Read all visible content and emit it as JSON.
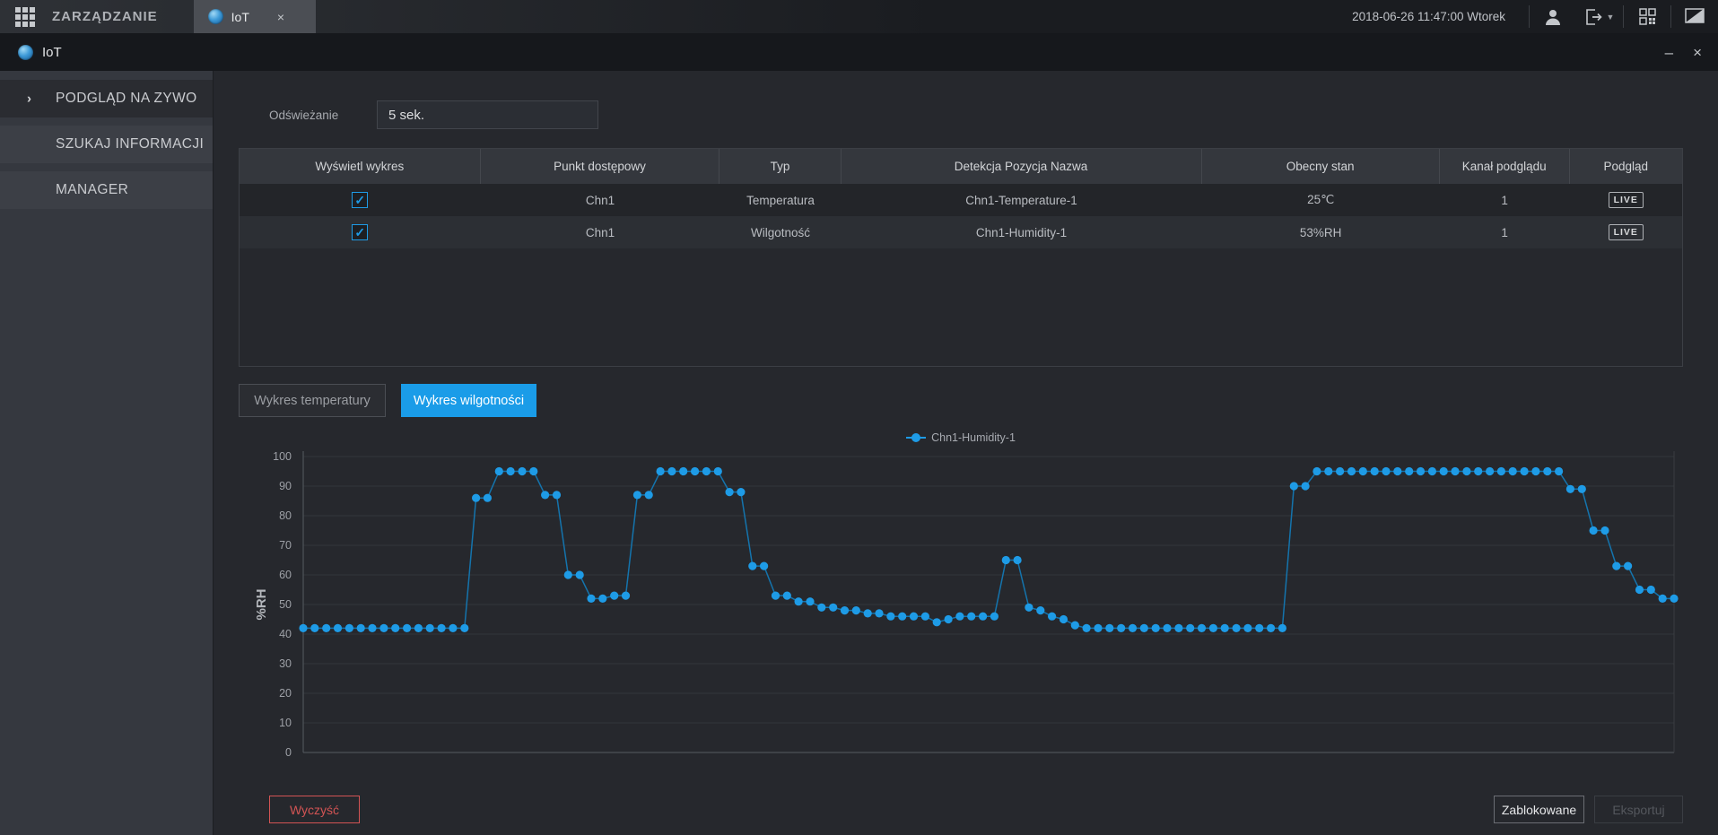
{
  "topbar": {
    "app_label": "ZARZĄDZANIE",
    "tab": {
      "label": "IoT",
      "close": "×"
    },
    "datetime": "2018-06-26 11:47:00 Wtorek"
  },
  "titlebar": {
    "title": "IoT",
    "minimize": "–",
    "close": "×"
  },
  "sidebar": {
    "items": [
      {
        "label": "PODGLĄD NA ZYWO",
        "active": true
      },
      {
        "label": "SZUKAJ INFORMACJI",
        "active": false
      },
      {
        "label": "MANAGER",
        "active": false
      }
    ]
  },
  "refresh": {
    "label": "Odświeżanie",
    "value": "5 sek."
  },
  "table": {
    "columns": [
      "Wyświetl wykres",
      "Punkt dostępowy",
      "Typ",
      "Detekcja Pozycja Nazwa",
      "Obecny stan",
      "Kanał podglądu",
      "Podgląd"
    ],
    "rows": [
      {
        "checked": true,
        "access_point": "Chn1",
        "type": "Temperatura",
        "detect_name": "Chn1-Temperature-1",
        "current_state": "25℃",
        "channel": "1",
        "preview": "LIVE"
      },
      {
        "checked": true,
        "access_point": "Chn1",
        "type": "Wilgotność",
        "detect_name": "Chn1-Humidity-1",
        "current_state": "53%RH",
        "channel": "1",
        "preview": "LIVE"
      }
    ]
  },
  "chart_tabs": {
    "temperature": "Wykres temperatury",
    "humidity": "Wykres wilgotności"
  },
  "chart_data": {
    "type": "line",
    "legend": [
      "Chn1-Humidity-1"
    ],
    "legend_position": "top-center",
    "ylabel": "%RH",
    "ylim": [
      0,
      100
    ],
    "y_ticks": [
      0,
      10,
      20,
      30,
      40,
      50,
      60,
      70,
      80,
      90,
      100
    ],
    "grid": true,
    "x_tick_labels_visible": false,
    "line_color": "#1e9be6",
    "series": [
      {
        "name": "Chn1-Humidity-1",
        "values": [
          42,
          42,
          42,
          42,
          42,
          42,
          42,
          42,
          42,
          42,
          42,
          42,
          42,
          42,
          42,
          86,
          86,
          95,
          95,
          95,
          95,
          87,
          87,
          60,
          60,
          52,
          52,
          53,
          53,
          87,
          87,
          95,
          95,
          95,
          95,
          95,
          95,
          88,
          88,
          63,
          63,
          53,
          53,
          51,
          51,
          49,
          49,
          48,
          48,
          47,
          47,
          46,
          46,
          46,
          46,
          44,
          45,
          46,
          46,
          46,
          46,
          65,
          65,
          49,
          48,
          46,
          45,
          43,
          42,
          42,
          42,
          42,
          42,
          42,
          42,
          42,
          42,
          42,
          42,
          42,
          42,
          42,
          42,
          42,
          42,
          42,
          90,
          90,
          95,
          95,
          95,
          95,
          95,
          95,
          95,
          95,
          95,
          95,
          95,
          95,
          95,
          95,
          95,
          95,
          95,
          95,
          95,
          95,
          95,
          95,
          89,
          89,
          75,
          75,
          63,
          63,
          55,
          55,
          52,
          52
        ]
      }
    ]
  },
  "footer": {
    "clear": "Wyczyść",
    "locked": "Zablokowane",
    "export": "Eksportuj"
  }
}
